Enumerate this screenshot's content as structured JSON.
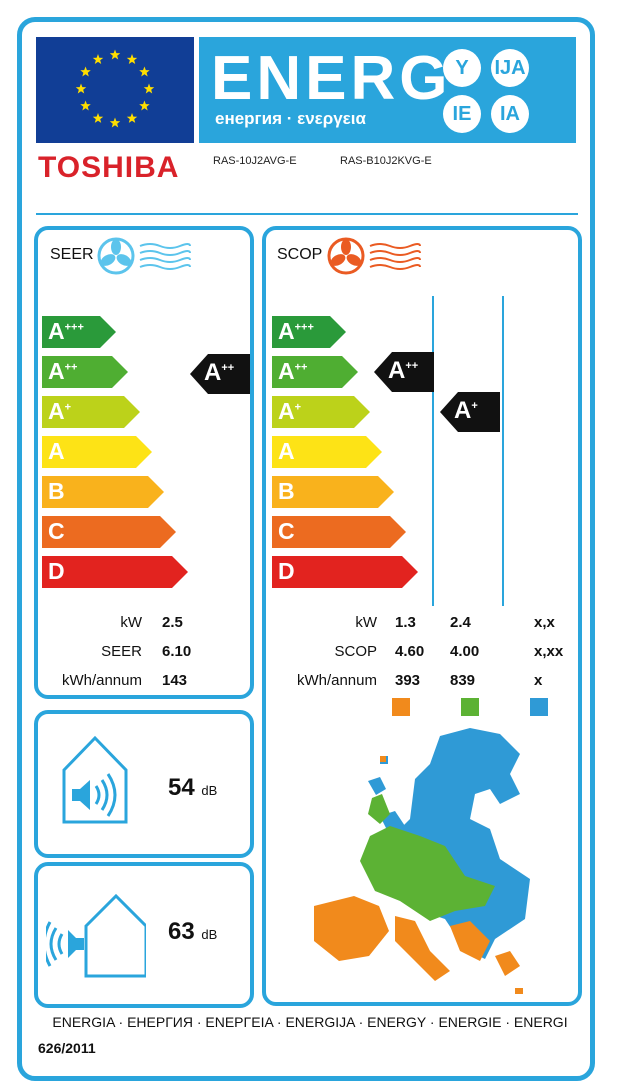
{
  "header": {
    "energy_word": "ENERG",
    "energy_subtitle": "енергия · ενεργεια",
    "suffixes": [
      "Y",
      "IJA",
      "IE",
      "IA"
    ],
    "flag_icon": "eu-flag-icon"
  },
  "brand": {
    "name": "TOSHIBA"
  },
  "models": {
    "indoor": "RAS-10J2AVG-E",
    "outdoor": "RAS-B10J2KVG-E"
  },
  "scale": {
    "classes": [
      {
        "label": "A",
        "sup": "+++",
        "color": "#2a9a3a"
      },
      {
        "label": "A",
        "sup": "++",
        "color": "#4fae32"
      },
      {
        "label": "A",
        "sup": "+",
        "color": "#bcd21a"
      },
      {
        "label": "A",
        "sup": "",
        "color": "#fde316"
      },
      {
        "label": "B",
        "sup": "",
        "color": "#f9b21c"
      },
      {
        "label": "C",
        "sup": "",
        "color": "#ec6b20"
      },
      {
        "label": "D",
        "sup": "",
        "color": "#e2231f"
      }
    ]
  },
  "seer": {
    "title": "SEER",
    "icon": "cooling-fan-icon",
    "rating": {
      "label": "A",
      "sup": "++"
    },
    "rows": [
      {
        "label": "kW",
        "value": "2.5"
      },
      {
        "label": "SEER",
        "value": "6.10"
      },
      {
        "label": "kWh/annum",
        "value": "143"
      }
    ]
  },
  "scop": {
    "title": "SCOP",
    "icon": "heating-fan-icon",
    "ratings": [
      {
        "label": "A",
        "sup": "++"
      },
      {
        "label": "A",
        "sup": "+"
      }
    ],
    "rows": [
      {
        "label": "kW",
        "values": [
          "1.3",
          "2.4",
          "x,x"
        ]
      },
      {
        "label": "SCOP",
        "values": [
          "4.60",
          "4.00",
          "x,xx"
        ]
      },
      {
        "label": "kWh/annum",
        "values": [
          "393",
          "839",
          "x"
        ]
      }
    ],
    "zone_colors": [
      "#f18a1c",
      "#5cb234",
      "#2f9ad6"
    ],
    "map_icon": "europe-climate-zones-map"
  },
  "noise": {
    "indoor": {
      "value": "54",
      "unit": "dB",
      "icon": "indoor-sound-icon"
    },
    "outdoor": {
      "value": "63",
      "unit": "dB",
      "icon": "outdoor-sound-icon"
    }
  },
  "footer": {
    "languages": "ENERGIA · ЕНЕРГИЯ · ΕΝΕΡΓΕΙΑ · ENERGIJA · ENERGY · ENERGIE · ENERGI",
    "regulation": "626/2011"
  }
}
